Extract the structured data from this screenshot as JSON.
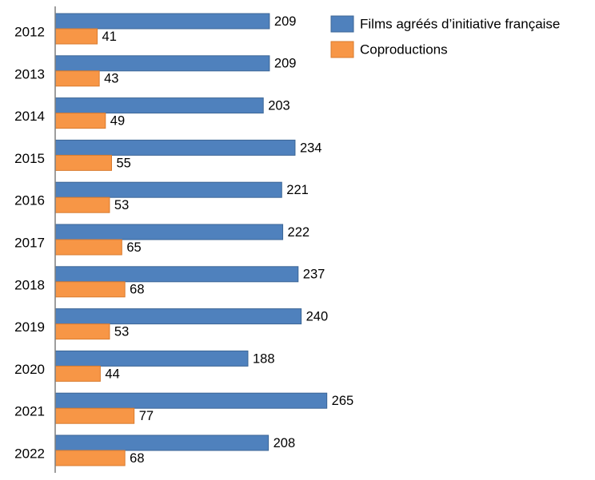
{
  "chart_data": {
    "type": "bar",
    "orientation": "horizontal",
    "categories": [
      "2012",
      "2013",
      "2014",
      "2015",
      "2016",
      "2017",
      "2018",
      "2019",
      "2020",
      "2021",
      "2022"
    ],
    "series": [
      {
        "name": "Films agréés d’initiative française",
        "values": [
          209,
          209,
          203,
          234,
          221,
          222,
          237,
          240,
          188,
          265,
          208
        ],
        "color": "#4f81bd"
      },
      {
        "name": "Coproductions",
        "values": [
          41,
          43,
          49,
          55,
          53,
          65,
          68,
          53,
          44,
          77,
          68
        ],
        "color": "#f79646"
      }
    ],
    "title": "",
    "xlabel": "",
    "ylabel": "",
    "xlim": [
      0,
      300
    ],
    "grid": false,
    "legend_position": "top-right",
    "data_labels": true
  }
}
